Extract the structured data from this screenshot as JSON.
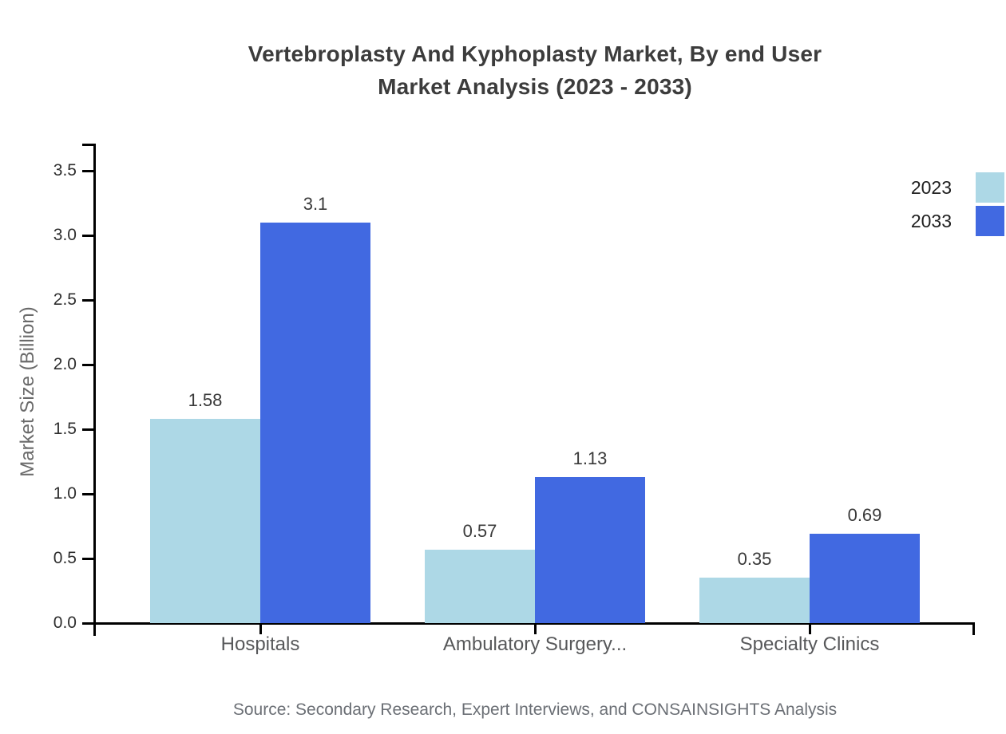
{
  "chart_data": {
    "type": "bar",
    "title_line1": "Vertebroplasty And Kyphoplasty Market, By end User",
    "title_line2": "Market Analysis (2023 - 2033)",
    "ylabel": "Market Size (Billion)",
    "xlabel": "",
    "categories": [
      "Hospitals",
      "Ambulatory Surgery...",
      "Specialty Clinics"
    ],
    "series": [
      {
        "name": "2023",
        "color": "#ADD8E6",
        "values": [
          1.58,
          0.57,
          0.35
        ]
      },
      {
        "name": "2033",
        "color": "#4169E1",
        "values": [
          3.1,
          1.13,
          0.69
        ]
      }
    ],
    "ylim": [
      0,
      3.5
    ],
    "yticks": [
      0,
      0.5,
      1,
      1.5,
      2,
      2.5,
      3,
      3.5
    ],
    "legend_position": "top-right",
    "grid": false,
    "axis_color": "#000000"
  },
  "source": "Source: Secondary Research, Expert Interviews, and CONSAINSIGHTS Analysis"
}
